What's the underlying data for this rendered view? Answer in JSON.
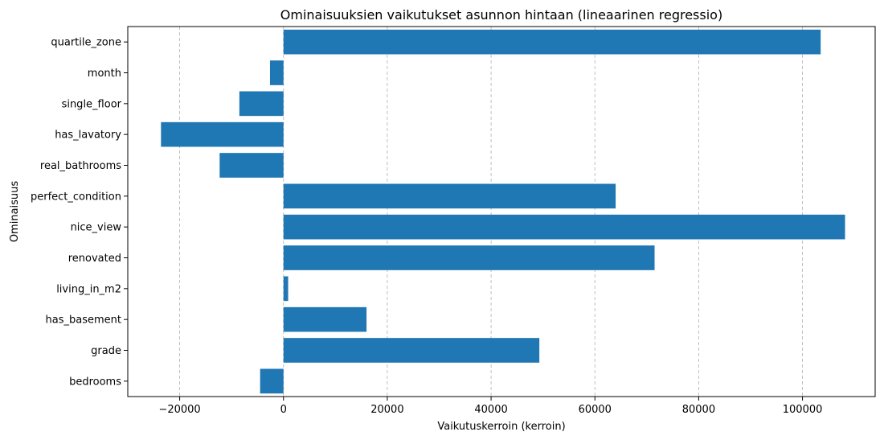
{
  "chart_data": {
    "type": "bar",
    "orientation": "horizontal",
    "title": "Ominaisuuksien vaikutukset asunnon hintaan (lineaarinen regressio)",
    "xlabel": "Vaikutuskerroin (kerroin)",
    "ylabel": "Ominaisuus",
    "xlim": [
      -30000,
      114000
    ],
    "xticks": [
      -20000,
      0,
      20000,
      40000,
      60000,
      80000,
      100000
    ],
    "xtick_labels": [
      "−20000",
      "0",
      "20000",
      "40000",
      "60000",
      "80000",
      "100000"
    ],
    "grid": "vertical dashed",
    "bar_color": "#1f77b4",
    "categories": [
      "quartile_zone",
      "month",
      "single_floor",
      "has_lavatory",
      "real_bathrooms",
      "perfect_condition",
      "nice_view",
      "renovated",
      "living_in_m2",
      "has_basement",
      "grade",
      "bedrooms"
    ],
    "values": [
      103500,
      -2600,
      -8500,
      -23600,
      -12300,
      64000,
      108200,
      71500,
      900,
      16000,
      49300,
      -4500
    ]
  }
}
